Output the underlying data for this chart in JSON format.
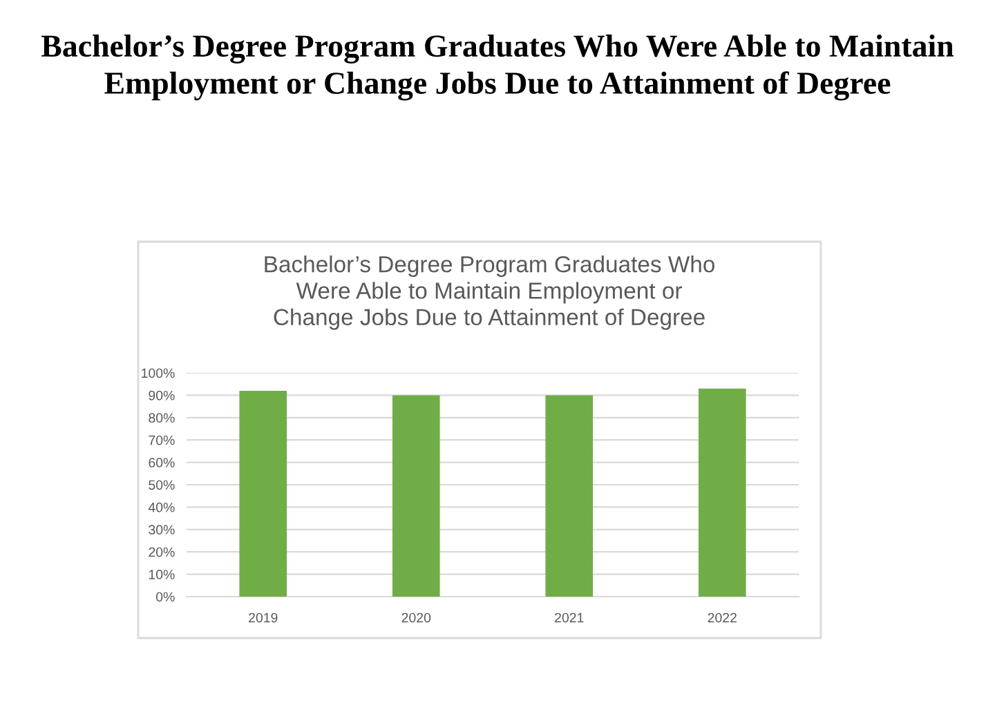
{
  "chart_data": {
    "type": "bar",
    "title": "Bachelor’s Degree Program Graduates Who Were Able to Maintain Employment or Change Jobs Due to Attainment of Degree",
    "subtitle": "Bachelor’s Degree Program Graduates Who\nWere Able to Maintain Employment or\nChange Jobs Due to Attainment of Degree",
    "categories": [
      "2019",
      "2020",
      "2021",
      "2022"
    ],
    "values": [
      92,
      90,
      90,
      93
    ],
    "color": "#70ad47",
    "ylim": [
      0,
      100
    ],
    "yticks": [
      {
        "value": 0,
        "label": "0%"
      },
      {
        "value": 10,
        "label": "10%"
      },
      {
        "value": 20,
        "label": "20%"
      },
      {
        "value": 30,
        "label": "30%"
      },
      {
        "value": 40,
        "label": "40%"
      },
      {
        "value": 50,
        "label": "50%"
      },
      {
        "value": 60,
        "label": "60%"
      },
      {
        "value": 70,
        "label": "70%"
      },
      {
        "value": 80,
        "label": "80%"
      },
      {
        "value": 90,
        "label": "90%"
      },
      {
        "value": 100,
        "label": "100%"
      }
    ],
    "grid": "y",
    "legend": false
  }
}
